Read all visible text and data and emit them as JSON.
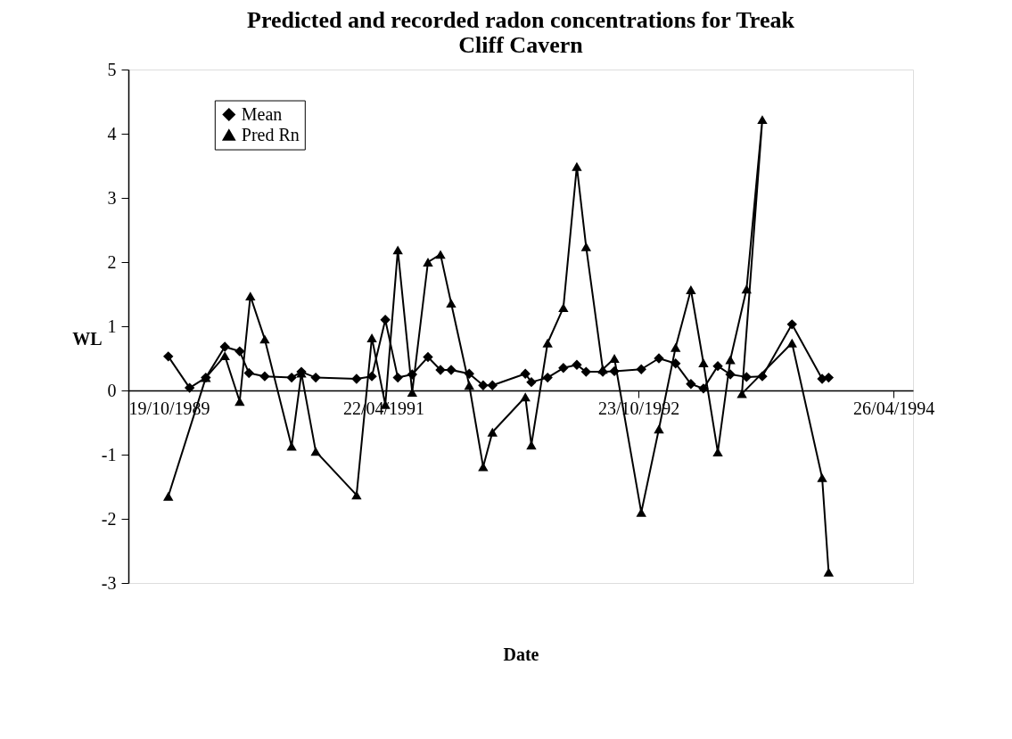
{
  "chart_data": {
    "type": "line",
    "title": "Predicted and recorded radon concentrations for Treak Cliff Cavern",
    "xlabel": "Date",
    "ylabel": "WL",
    "xlim": [
      "1989-10-19",
      "1994-06-07"
    ],
    "xticks": [
      {
        "value": "1989-10-19",
        "label": "19/10/1989"
      },
      {
        "value": "1991-04-22",
        "label": "22/04/1991"
      },
      {
        "value": "1992-10-23",
        "label": "23/10/1992"
      },
      {
        "value": "1994-04-26",
        "label": "26/04/1994"
      }
    ],
    "ylim": [
      -3,
      5
    ],
    "yticks": [
      -3,
      -2,
      -1,
      0,
      1,
      2,
      3,
      4,
      5
    ],
    "grid": false,
    "legend": "top left",
    "line_style": "solid",
    "series": [
      {
        "name": "Mean",
        "color": "#000000",
        "marker": "diamond",
        "x": [
          "1990-01-13",
          "1990-02-28",
          "1990-04-04",
          "1990-05-15",
          "1990-06-16",
          "1990-07-06",
          "1990-08-09",
          "1990-10-06",
          "1990-10-27",
          "1990-11-27",
          "1991-02-23",
          "1991-03-28",
          "1991-04-26",
          "1991-05-23",
          "1991-06-23",
          "1991-07-27",
          "1991-08-23",
          "1991-09-15",
          "1991-10-24",
          "1991-11-23",
          "1991-12-13",
          "1992-02-22",
          "1992-03-06",
          "1992-04-10",
          "1992-05-14",
          "1992-06-12",
          "1992-07-02",
          "1992-08-07",
          "1992-09-01",
          "1992-10-29",
          "1992-12-06",
          "1993-01-11",
          "1993-02-13",
          "1993-03-12",
          "1993-04-12",
          "1993-05-09",
          "1993-06-13",
          "1993-07-17",
          "1993-09-19",
          "1993-11-23",
          "1993-12-07"
        ],
        "values": [
          0.53,
          0.04,
          0.2,
          0.68,
          0.61,
          0.27,
          0.22,
          0.2,
          0.29,
          0.2,
          0.18,
          0.22,
          1.1,
          0.2,
          0.25,
          0.52,
          0.32,
          0.32,
          0.26,
          0.08,
          0.08,
          0.26,
          0.13,
          0.2,
          0.35,
          0.4,
          0.29,
          0.29,
          0.3,
          0.33,
          0.5,
          0.42,
          0.1,
          0.03,
          0.38,
          0.25,
          0.21,
          0.22,
          1.03,
          0.18,
          0.2
        ]
      },
      {
        "name": "Pred Rn",
        "color": "#000000",
        "marker": "triangle",
        "x": [
          "1990-01-13",
          "1990-04-04",
          "1990-05-15",
          "1990-06-16",
          "1990-07-09",
          "1990-08-09",
          "1990-10-06",
          "1990-10-27",
          "1990-11-27",
          "1991-02-23",
          "1991-03-28",
          "1991-04-26",
          "1991-05-23",
          "1991-06-23",
          "1991-07-27",
          "1991-08-23",
          "1991-09-15",
          "1991-10-24",
          "1991-11-23",
          "1991-12-13",
          "1992-02-22",
          "1992-03-06",
          "1992-04-10",
          "1992-05-14",
          "1992-06-12",
          "1992-07-02",
          "1992-08-07",
          "1992-09-01",
          "1992-10-29",
          "1992-12-06",
          "1993-01-11",
          "1993-02-13",
          "1993-03-12",
          "1993-04-12",
          "1993-05-09",
          "1993-06-13",
          "1993-07-17",
          "1993-06-03",
          "1993-09-19",
          "1993-11-23",
          "1993-12-07"
        ],
        "values": [
          -1.65,
          0.2,
          0.54,
          -0.17,
          1.47,
          0.8,
          -0.87,
          0.27,
          -0.95,
          -1.63,
          0.82,
          -0.22,
          2.19,
          -0.03,
          2.0,
          2.12,
          1.36,
          0.08,
          -1.19,
          -0.65,
          -0.1,
          -0.85,
          0.74,
          1.29,
          3.49,
          2.24,
          0.33,
          0.5,
          -1.9,
          -0.6,
          0.67,
          1.57,
          0.43,
          -0.96,
          0.48,
          1.58,
          4.22,
          -0.05,
          0.74,
          -1.36,
          -2.83
        ]
      }
    ]
  }
}
